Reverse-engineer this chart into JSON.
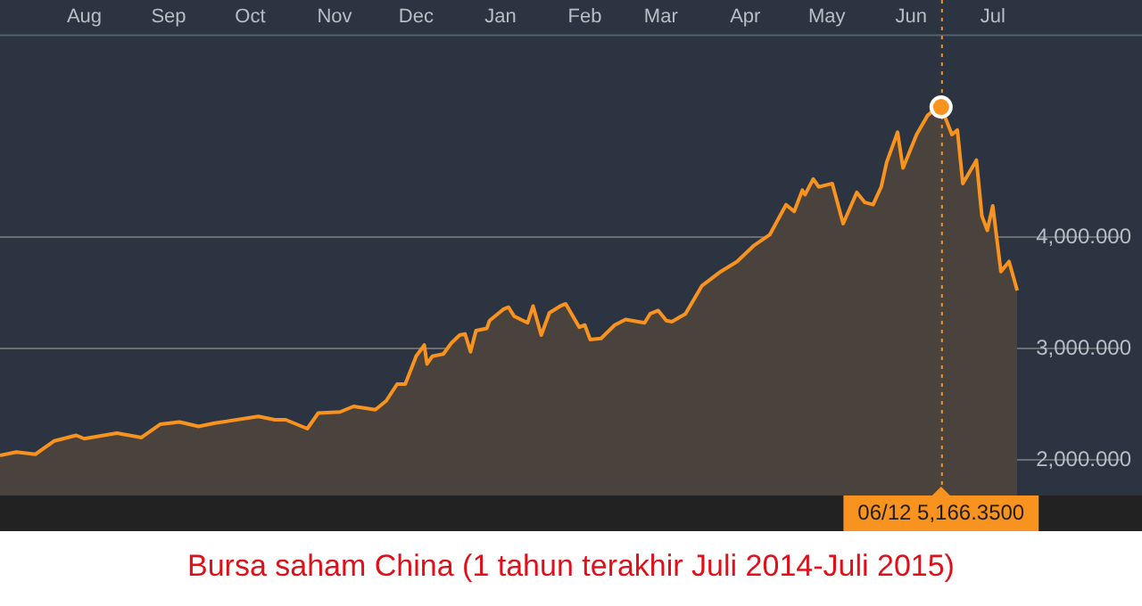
{
  "chart_data": {
    "type": "area",
    "title": "Bursa saham China (1 tahun terakhir Juli 2014-Juli 2015)",
    "x": [
      "2014-07-01",
      "2014-07-07",
      "2014-07-14",
      "2014-07-21",
      "2014-07-29",
      "2014-08-01",
      "2014-08-13",
      "2014-08-22",
      "2014-08-29",
      "2014-09-05",
      "2014-09-12",
      "2014-09-18",
      "2014-10-04",
      "2014-10-10",
      "2014-10-14",
      "2014-10-22",
      "2014-10-26",
      "2014-11-03",
      "2014-11-08",
      "2014-11-16",
      "2014-11-20",
      "2014-11-24",
      "2014-11-27",
      "2014-12-01",
      "2014-12-04",
      "2014-12-05",
      "2014-12-07",
      "2014-12-11",
      "2014-12-14",
      "2014-12-17",
      "2014-12-19",
      "2014-12-21",
      "2014-12-23",
      "2014-12-27",
      "2014-12-28",
      "2015-01-02",
      "2015-01-04",
      "2015-01-06",
      "2015-01-11",
      "2015-01-13",
      "2015-01-16",
      "2015-01-19",
      "2015-01-23",
      "2015-01-25",
      "2015-01-30",
      "2015-02-01",
      "2015-02-03",
      "2015-02-07",
      "2015-02-12",
      "2015-02-16",
      "2015-02-23",
      "2015-02-25",
      "2015-02-28",
      "2015-03-03",
      "2015-03-05",
      "2015-03-10",
      "2015-03-16",
      "2015-03-23",
      "2015-03-29",
      "2015-04-04",
      "2015-04-10",
      "2015-04-16",
      "2015-04-19",
      "2015-04-22",
      "2015-04-23",
      "2015-04-26",
      "2015-04-28",
      "2015-05-03",
      "2015-05-07",
      "2015-05-12",
      "2015-05-15",
      "2015-05-18",
      "2015-05-21",
      "2015-05-23",
      "2015-05-27",
      "2015-05-29",
      "2015-06-03",
      "2015-06-07",
      "2015-06-10",
      "2015-06-12",
      "2015-06-16",
      "2015-06-18",
      "2015-06-20",
      "2015-06-25",
      "2015-06-27",
      "2015-06-29",
      "2015-07-01",
      "2015-07-04",
      "2015-07-07",
      "2015-07-10"
    ],
    "series": [
      {
        "color": "#f7931e",
        "values": [
          2040,
          2070,
          2050,
          2170,
          2220,
          2190,
          2240,
          2200,
          2320,
          2340,
          2300,
          2330,
          2390,
          2360,
          2360,
          2280,
          2420,
          2430,
          2480,
          2450,
          2530,
          2680,
          2680,
          2930,
          3030,
          2860,
          2930,
          2950,
          3050,
          3120,
          3130,
          2970,
          3160,
          3180,
          3250,
          3350,
          3370,
          3290,
          3230,
          3380,
          3120,
          3320,
          3380,
          3400,
          3190,
          3210,
          3080,
          3090,
          3210,
          3260,
          3230,
          3310,
          3340,
          3250,
          3240,
          3310,
          3560,
          3690,
          3780,
          3920,
          4020,
          4290,
          4230,
          4420,
          4380,
          4520,
          4450,
          4480,
          4120,
          4400,
          4310,
          4290,
          4450,
          4670,
          4940,
          4620,
          4920,
          5090,
          5150,
          5166.35,
          4920,
          4960,
          4480,
          4690,
          4190,
          4060,
          4280,
          3690,
          3780,
          3520
        ]
      }
    ],
    "xlim": [
      "2014-07-01",
      "2015-08-17"
    ],
    "xticks": [
      {
        "value": "2014-08-01",
        "label": "Aug"
      },
      {
        "value": "2014-09-01",
        "label": "Sep"
      },
      {
        "value": "2014-10-01",
        "label": "Oct"
      },
      {
        "value": "2014-11-01",
        "label": "Nov"
      },
      {
        "value": "2014-12-01",
        "label": "Dec"
      },
      {
        "value": "2015-01-01",
        "label": "Jan"
      },
      {
        "value": "2015-02-01",
        "label": "Feb"
      },
      {
        "value": "2015-03-01",
        "label": "Mar"
      },
      {
        "value": "2015-04-01",
        "label": "Apr"
      },
      {
        "value": "2015-05-01",
        "label": "May"
      },
      {
        "value": "2015-06-01",
        "label": "Jun"
      },
      {
        "value": "2015-07-01",
        "label": "Jul"
      }
    ],
    "ylim": [
      1680,
      5820
    ],
    "yticks": [
      {
        "value": 2000,
        "label": "2,000.000"
      },
      {
        "value": 3000,
        "label": "3,000.000"
      },
      {
        "value": 4000,
        "label": "4,000.000"
      }
    ],
    "grid": "y",
    "legend": false,
    "ref_lines": [
      {
        "axis": "x",
        "value": "2015-06-12",
        "color": "#f7931e",
        "line_style": "dotted"
      }
    ],
    "annotations": [
      "06/12 5,166.3500"
    ]
  }
}
